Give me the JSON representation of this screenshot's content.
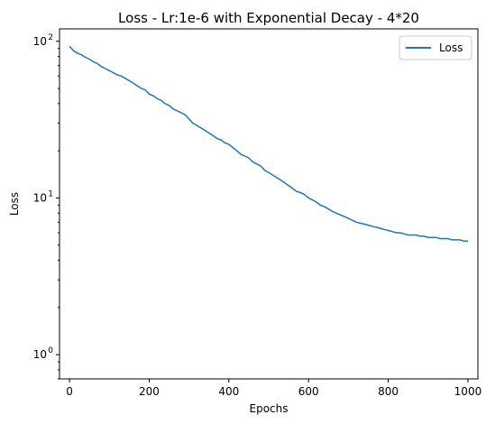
{
  "chart_data": {
    "type": "line",
    "title": "Loss - Lr:1e-6 with Exponential Decay - 4*20",
    "xlabel": "Epochs",
    "ylabel": "Loss",
    "yscale": "log",
    "xlim": [
      -25,
      1025
    ],
    "ylim": [
      0.7,
      120
    ],
    "x_ticks": [
      0,
      200,
      400,
      600,
      800,
      1000
    ],
    "y_ticks": [
      1,
      10,
      100
    ],
    "x_tick_labels": [
      "0",
      "200",
      "400",
      "600",
      "800",
      "1000"
    ],
    "y_tick_labels": [
      "10",
      "10",
      "10"
    ],
    "y_tick_exponents": [
      "0",
      "1",
      "2"
    ],
    "grid": false,
    "legend_position": "top-right",
    "series": [
      {
        "name": "Loss",
        "color": "#1f77b4",
        "points": [
          [
            0,
            93
          ],
          [
            5,
            90
          ],
          [
            10,
            87
          ],
          [
            20,
            84
          ],
          [
            30,
            82
          ],
          [
            40,
            79
          ],
          [
            50,
            77
          ],
          [
            60,
            74
          ],
          [
            70,
            72
          ],
          [
            80,
            69
          ],
          [
            90,
            67
          ],
          [
            100,
            65
          ],
          [
            110,
            63
          ],
          [
            120,
            61
          ],
          [
            130,
            60
          ],
          [
            140,
            58
          ],
          [
            150,
            56
          ],
          [
            160,
            54
          ],
          [
            170,
            52
          ],
          [
            180,
            50
          ],
          [
            190,
            49
          ],
          [
            200,
            46
          ],
          [
            210,
            45
          ],
          [
            220,
            43
          ],
          [
            230,
            42
          ],
          [
            240,
            40
          ],
          [
            250,
            39
          ],
          [
            260,
            37
          ],
          [
            270,
            36
          ],
          [
            280,
            35
          ],
          [
            290,
            34
          ],
          [
            300,
            32
          ],
          [
            310,
            30
          ],
          [
            320,
            29
          ],
          [
            330,
            28
          ],
          [
            340,
            27
          ],
          [
            350,
            26
          ],
          [
            360,
            25
          ],
          [
            370,
            24
          ],
          [
            380,
            23.5
          ],
          [
            390,
            22.5
          ],
          [
            400,
            22
          ],
          [
            410,
            21
          ],
          [
            420,
            20
          ],
          [
            430,
            19
          ],
          [
            440,
            18.5
          ],
          [
            450,
            18
          ],
          [
            460,
            17
          ],
          [
            470,
            16.5
          ],
          [
            480,
            16
          ],
          [
            490,
            15
          ],
          [
            500,
            14.5
          ],
          [
            510,
            14
          ],
          [
            520,
            13.5
          ],
          [
            530,
            13
          ],
          [
            540,
            12.5
          ],
          [
            550,
            12
          ],
          [
            560,
            11.5
          ],
          [
            570,
            11
          ],
          [
            580,
            10.8
          ],
          [
            590,
            10.5
          ],
          [
            600,
            10
          ],
          [
            610,
            9.7
          ],
          [
            620,
            9.4
          ],
          [
            630,
            9
          ],
          [
            640,
            8.8
          ],
          [
            650,
            8.5
          ],
          [
            660,
            8.2
          ],
          [
            670,
            8
          ],
          [
            680,
            7.8
          ],
          [
            690,
            7.6
          ],
          [
            700,
            7.4
          ],
          [
            710,
            7.2
          ],
          [
            720,
            7
          ],
          [
            730,
            6.9
          ],
          [
            740,
            6.8
          ],
          [
            750,
            6.7
          ],
          [
            760,
            6.6
          ],
          [
            770,
            6.5
          ],
          [
            780,
            6.4
          ],
          [
            790,
            6.3
          ],
          [
            800,
            6.2
          ],
          [
            810,
            6.1
          ],
          [
            820,
            6
          ],
          [
            830,
            6
          ],
          [
            840,
            5.9
          ],
          [
            850,
            5.8
          ],
          [
            860,
            5.8
          ],
          [
            870,
            5.8
          ],
          [
            880,
            5.7
          ],
          [
            890,
            5.7
          ],
          [
            900,
            5.6
          ],
          [
            910,
            5.6
          ],
          [
            920,
            5.6
          ],
          [
            930,
            5.5
          ],
          [
            940,
            5.5
          ],
          [
            950,
            5.5
          ],
          [
            960,
            5.4
          ],
          [
            970,
            5.4
          ],
          [
            980,
            5.4
          ],
          [
            990,
            5.3
          ],
          [
            1000,
            5.3
          ]
        ]
      }
    ]
  }
}
